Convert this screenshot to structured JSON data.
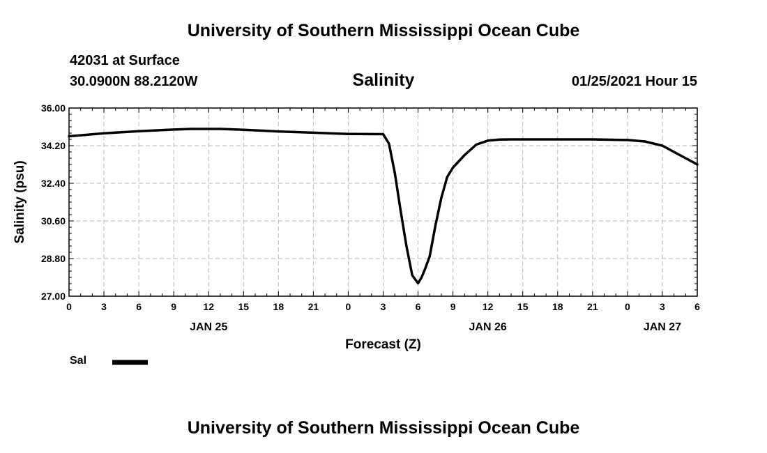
{
  "header": {
    "top_title": "University of Southern Mississippi Ocean Cube",
    "station": "42031 at Surface",
    "coords": "30.0900N 88.2120W",
    "chart_title": "Salinity",
    "timestamp": "01/25/2021 Hour 15",
    "bottom_title": "University of Southern Mississippi Ocean Cube"
  },
  "legend": {
    "label": "Sal"
  },
  "colors": {
    "line": "#000000",
    "grid": "#bbbbbb"
  },
  "chart_data": {
    "type": "line",
    "title": "Salinity",
    "xlabel": "Forecast (Z)",
    "ylabel": "Salinity (psu)",
    "ylim": [
      27.0,
      36.0
    ],
    "xlim": [
      0,
      54
    ],
    "yticks": [
      27.0,
      28.8,
      30.6,
      32.4,
      34.2,
      36.0
    ],
    "ytick_labels": [
      "27.00",
      "28.80",
      "30.60",
      "32.40",
      "34.20",
      "36.00"
    ],
    "xticks": [
      0,
      3,
      6,
      9,
      12,
      15,
      18,
      21,
      24,
      27,
      30,
      33,
      36,
      39,
      42,
      45,
      48,
      51,
      54
    ],
    "xtick_labels": [
      "0",
      "3",
      "6",
      "9",
      "12",
      "15",
      "18",
      "21",
      "0",
      "3",
      "6",
      "9",
      "12",
      "15",
      "18",
      "21",
      "0",
      "3",
      "6"
    ],
    "date_labels": [
      {
        "x": 12,
        "label": "JAN 25"
      },
      {
        "x": 36,
        "label": "JAN 26"
      },
      {
        "x": 51,
        "label": "JAN 27"
      }
    ],
    "grid": true,
    "series": [
      {
        "name": "Sal",
        "x": [
          0,
          3,
          6,
          9,
          10.5,
          13,
          15,
          18,
          21,
          24,
          27,
          27.5,
          28,
          28.5,
          29,
          29.5,
          30,
          30.3,
          30.6,
          31,
          31.5,
          32,
          32.5,
          33,
          34,
          35,
          36,
          37,
          38,
          39,
          40,
          42,
          45,
          48,
          49.5,
          51,
          52,
          53,
          54
        ],
        "y": [
          34.65,
          34.79,
          34.89,
          34.97,
          35.0,
          35.0,
          34.96,
          34.88,
          34.82,
          34.76,
          34.75,
          34.3,
          32.9,
          31.1,
          29.4,
          28.0,
          27.62,
          27.9,
          28.3,
          28.9,
          30.4,
          31.7,
          32.7,
          33.15,
          33.75,
          34.25,
          34.44,
          34.49,
          34.5,
          34.5,
          34.5,
          34.5,
          34.5,
          34.47,
          34.4,
          34.2,
          33.9,
          33.6,
          33.3
        ]
      }
    ]
  }
}
